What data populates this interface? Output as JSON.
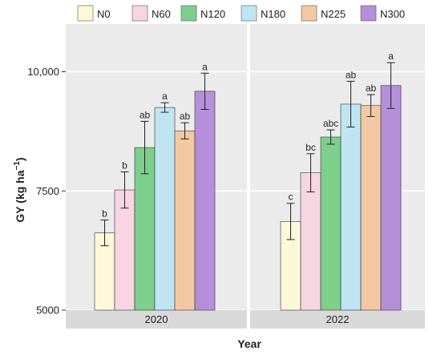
{
  "chart_data": {
    "type": "bar",
    "xlabel": "Year",
    "ylabel": "GY (kg ha",
    "ylabel_sup": "−1",
    "ylabel_close": ")",
    "ylim": [
      5000,
      11000
    ],
    "yticks": [
      {
        "value": 5000,
        "label": "5000"
      },
      {
        "value": 7500,
        "label": "7500"
      },
      {
        "value": 10000,
        "label": "10,000"
      }
    ],
    "panel_background": "#ebebeb",
    "grid": true,
    "legend_position": "top",
    "categories": [
      "2020",
      "2022"
    ],
    "series": [
      {
        "name": "N0",
        "color": "#fdf8d7",
        "values": [
          6620,
          6860
        ],
        "errors": [
          270,
          380
        ],
        "letters": [
          "b",
          "c"
        ]
      },
      {
        "name": "N60",
        "color": "#f8d5e3",
        "values": [
          7520,
          7880
        ],
        "errors": [
          380,
          400
        ],
        "letters": [
          "b",
          "bc"
        ]
      },
      {
        "name": "N120",
        "color": "#7dcf8c",
        "values": [
          8410,
          8630
        ],
        "errors": [
          550,
          150
        ],
        "letters": [
          "ab",
          "abc"
        ]
      },
      {
        "name": "N180",
        "color": "#bfe5f3",
        "values": [
          9250,
          9320
        ],
        "errors": [
          100,
          480
        ],
        "letters": [
          "a",
          "ab"
        ]
      },
      {
        "name": "N225",
        "color": "#f4c8a2",
        "values": [
          8760,
          9290
        ],
        "errors": [
          170,
          230
        ],
        "letters": [
          "ab",
          "ab"
        ]
      },
      {
        "name": "N300",
        "color": "#b58fd9",
        "values": [
          9590,
          9710
        ],
        "errors": [
          380,
          480
        ],
        "letters": [
          "a",
          "a"
        ]
      }
    ]
  }
}
